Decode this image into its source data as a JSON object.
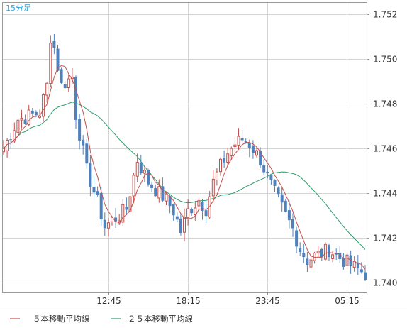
{
  "period_label": "15分足",
  "legend": [
    {
      "label": "５本移動平均線",
      "color": "#c0504d"
    },
    {
      "label": "２５本移動平均線",
      "color": "#2e9e6a"
    }
  ],
  "colors": {
    "up": "#c0504d",
    "down": "#4f81bd",
    "grid": "#d4d4d4",
    "frame": "#999999"
  },
  "chart_data": {
    "type": "candlestick",
    "y_ticks": [
      "1.752",
      "1.750",
      "1.748",
      "1.746",
      "1.744",
      "1.742",
      "1.740"
    ],
    "y_range": [
      1.7396,
      1.7525
    ],
    "x_ticks": [
      {
        "label": "12:45",
        "index": 29
      },
      {
        "label": "18:15",
        "index": 51
      },
      {
        "label": "23:45",
        "index": 73
      },
      {
        "label": "05:15",
        "index": 95
      }
    ],
    "candle_count": 101,
    "grid": true,
    "ma5_color": "#c0504d",
    "ma25_color": "#2e9e6a"
  }
}
